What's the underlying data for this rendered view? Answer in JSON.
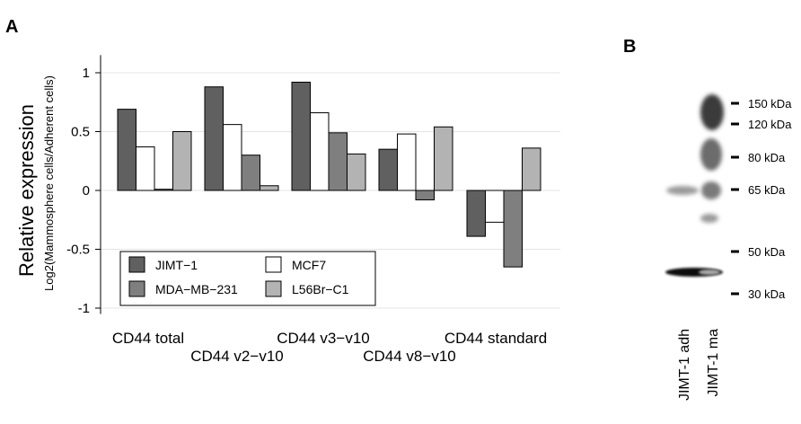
{
  "panels": {
    "a_letter": "A",
    "b_letter": "B"
  },
  "chart_data": {
    "type": "bar",
    "ylabel": "Relative expression",
    "ylabel_sub": "Log2(Mammosphere cells/Adherent cells)",
    "ylim": [
      -1.05,
      1.15
    ],
    "yticks": [
      -1,
      -0.5,
      0,
      0.5,
      1
    ],
    "ytick_labels": [
      "-1",
      "-0.5",
      "0",
      "0.5",
      "1"
    ],
    "categories": [
      "CD44 total",
      "CD44 v2−v10",
      "CD44 v3−v10",
      "CD44 v8−v10",
      "CD44 standard"
    ],
    "series": [
      {
        "name": "JIMT−1",
        "color": "#606060",
        "values": [
          0.69,
          0.88,
          0.92,
          0.35,
          -0.39
        ]
      },
      {
        "name": "MCF7",
        "color": "#ffffff",
        "values": [
          0.37,
          0.56,
          0.66,
          0.48,
          -0.27
        ]
      },
      {
        "name": "MDA−MB−231",
        "color": "#7f7f7f",
        "values": [
          0.01,
          0.3,
          0.49,
          -0.08,
          -0.65
        ]
      },
      {
        "name": "L56Br−C1",
        "color": "#b3b3b3",
        "values": [
          0.5,
          0.04,
          0.31,
          0.54,
          0.36
        ]
      }
    ],
    "legend_order": [
      "JIMT−1",
      "MCF7",
      "MDA−MB−231",
      "L56Br−C1"
    ],
    "legend_position": "lower-left",
    "grid": true
  },
  "blot": {
    "markers": [
      "150 kDa",
      "120 kDa",
      "80 kDa",
      "65 kDa",
      "50 kDa",
      "30 kDa"
    ],
    "lanes": [
      "JIMT-1 adh",
      "JIMT-1 ma"
    ]
  }
}
